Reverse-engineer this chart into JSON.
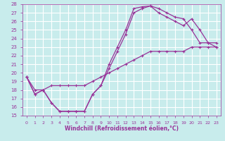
{
  "xlabel": "Windchill (Refroidissement éolien,°C)",
  "ylabel": "",
  "bg_color": "#c8ecec",
  "line_color": "#993399",
  "grid_color": "#ffffff",
  "xlim": [
    -0.5,
    23.5
  ],
  "ylim": [
    15,
    28
  ],
  "xticks": [
    0,
    1,
    2,
    3,
    4,
    5,
    6,
    7,
    8,
    9,
    10,
    11,
    12,
    13,
    14,
    15,
    16,
    17,
    18,
    19,
    20,
    21,
    22,
    23
  ],
  "yticks": [
    15,
    16,
    17,
    18,
    19,
    20,
    21,
    22,
    23,
    24,
    25,
    26,
    27,
    28
  ],
  "curve1_x": [
    0,
    1,
    2,
    3,
    4,
    5,
    6,
    7,
    8,
    9,
    10,
    11,
    12,
    13,
    14,
    15,
    16,
    17,
    18,
    19,
    20,
    21,
    22,
    23
  ],
  "curve1_y": [
    19.5,
    17.5,
    18.0,
    16.5,
    15.5,
    15.5,
    15.5,
    15.5,
    17.5,
    18.5,
    21.0,
    23.0,
    25.0,
    27.5,
    27.7,
    27.8,
    27.5,
    27.0,
    26.5,
    26.3,
    25.0,
    23.5,
    23.5,
    23.5
  ],
  "curve2_x": [
    0,
    1,
    2,
    3,
    4,
    5,
    6,
    7,
    8,
    9,
    10,
    11,
    12,
    13,
    14,
    15,
    16,
    17,
    18,
    19,
    20,
    21,
    22,
    23
  ],
  "curve2_y": [
    19.5,
    17.5,
    18.0,
    16.5,
    15.5,
    15.5,
    15.5,
    15.5,
    17.5,
    18.5,
    20.5,
    22.5,
    24.5,
    27.0,
    27.5,
    27.8,
    27.0,
    26.5,
    26.0,
    25.5,
    26.3,
    25.0,
    23.5,
    23.0
  ],
  "curve3_x": [
    0,
    1,
    2,
    3,
    4,
    5,
    6,
    7,
    8,
    9,
    10,
    11,
    12,
    13,
    14,
    15,
    16,
    17,
    18,
    19,
    20,
    21,
    22,
    23
  ],
  "curve3_y": [
    19.5,
    18.0,
    18.0,
    18.5,
    18.5,
    18.5,
    18.5,
    18.5,
    19.0,
    19.5,
    20.0,
    20.5,
    21.0,
    21.5,
    22.0,
    22.5,
    22.5,
    22.5,
    22.5,
    22.5,
    23.0,
    23.0,
    23.0,
    23.0
  ]
}
